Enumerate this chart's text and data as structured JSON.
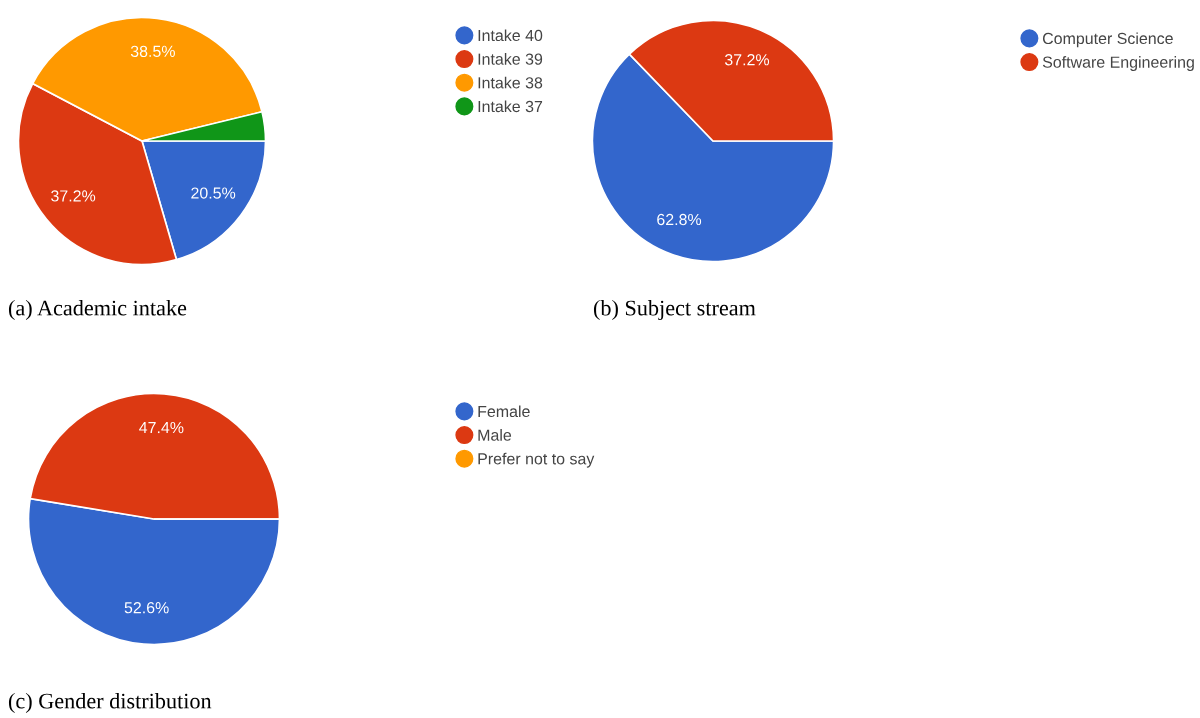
{
  "chart_data": [
    {
      "type": "pie",
      "title": "(a) Academic intake",
      "categories": [
        "Intake 40",
        "Intake 39",
        "Intake 38",
        "Intake 37"
      ],
      "values": [
        20.5,
        37.2,
        38.5,
        3.8
      ],
      "colors": [
        "#3366cc",
        "#dc3912",
        "#ff9900",
        "#109618"
      ],
      "value_labels": [
        "20.5%",
        "37.2%",
        "38.5%",
        null
      ],
      "legend": "right"
    },
    {
      "type": "pie",
      "title": "(b) Subject stream",
      "categories": [
        "Computer Science",
        "Software Engineering"
      ],
      "values": [
        62.8,
        37.2
      ],
      "colors": [
        "#3366cc",
        "#dc3912"
      ],
      "value_labels": [
        "62.8%",
        "37.2%"
      ],
      "legend": "right"
    },
    {
      "type": "pie",
      "title": "(c) Gender distribution",
      "categories": [
        "Female",
        "Male",
        "Prefer not to say"
      ],
      "values": [
        52.6,
        47.4,
        0
      ],
      "colors": [
        "#3366cc",
        "#dc3912",
        "#ff9900"
      ],
      "value_labels": [
        "52.6%",
        "47.4%",
        null
      ],
      "legend": "right"
    }
  ]
}
